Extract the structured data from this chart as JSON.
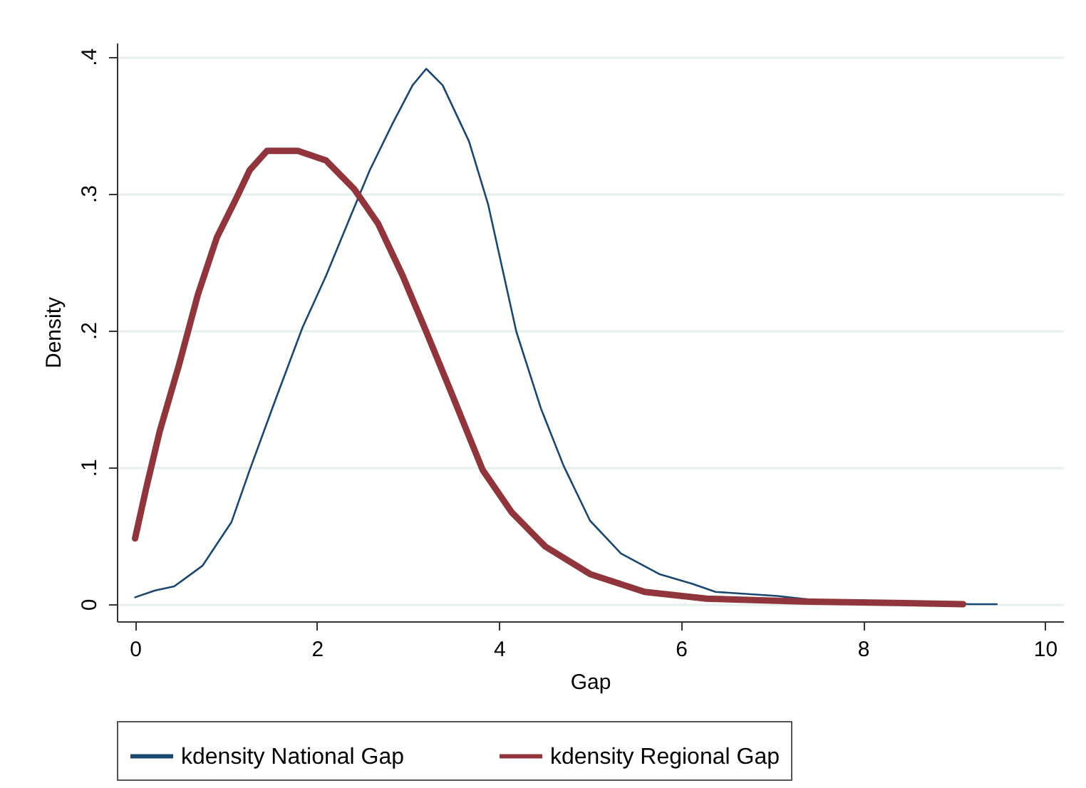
{
  "chart_data": {
    "type": "line",
    "xlabel": "Gap",
    "ylabel": "Density",
    "xlim": [
      -0.2,
      10.2
    ],
    "xticks": [
      0,
      2,
      4,
      6,
      8,
      10
    ],
    "ylim": [
      -0.0125,
      0.41
    ],
    "yticks": [
      {
        "value": 0,
        "label": "0"
      },
      {
        "value": 0.1,
        "label": ".1"
      },
      {
        "value": 0.2,
        "label": ".2"
      },
      {
        "value": 0.3,
        "label": ".3"
      },
      {
        "value": 0.4,
        "label": ".4"
      }
    ],
    "grid": "y",
    "legend": "bottom",
    "marker": "none",
    "line_style": "solid",
    "series": [
      {
        "name": "kdensity National Gap",
        "color": "#1a476f",
        "x": [
          0,
          0.22,
          0.43,
          0.74,
          1.06,
          1.26,
          1.53,
          1.84,
          2.1,
          2.36,
          2.58,
          2.83,
          3.05,
          3.2,
          3.38,
          3.67,
          3.88,
          4.04,
          4.19,
          4.46,
          4.71,
          5.0,
          5.34,
          5.76,
          6.12,
          6.38,
          7.06,
          7.59,
          9.2,
          9.47
        ],
        "values": [
          0.005,
          0.01,
          0.013,
          0.028,
          0.06,
          0.098,
          0.147,
          0.202,
          0.24,
          0.282,
          0.317,
          0.351,
          0.379,
          0.391,
          0.379,
          0.338,
          0.292,
          0.244,
          0.199,
          0.143,
          0.101,
          0.061,
          0.037,
          0.022,
          0.015,
          0.009,
          0.006,
          0.002,
          0,
          0
        ]
      },
      {
        "name": "kdensity Regional Gap",
        "color": "#90353b",
        "x": [
          0,
          0.12,
          0.27,
          0.48,
          0.69,
          0.9,
          1.11,
          1.26,
          1.45,
          1.79,
          2.1,
          2.41,
          2.67,
          2.94,
          3.2,
          3.46,
          3.82,
          4.14,
          4.51,
          5.0,
          5.6,
          6.28,
          7.33,
          9.1
        ],
        "values": [
          0.048,
          0.084,
          0.126,
          0.174,
          0.226,
          0.268,
          0.296,
          0.317,
          0.331,
          0.331,
          0.324,
          0.303,
          0.278,
          0.24,
          0.199,
          0.157,
          0.098,
          0.067,
          0.042,
          0.022,
          0.009,
          0.004,
          0.002,
          0
        ]
      }
    ]
  }
}
